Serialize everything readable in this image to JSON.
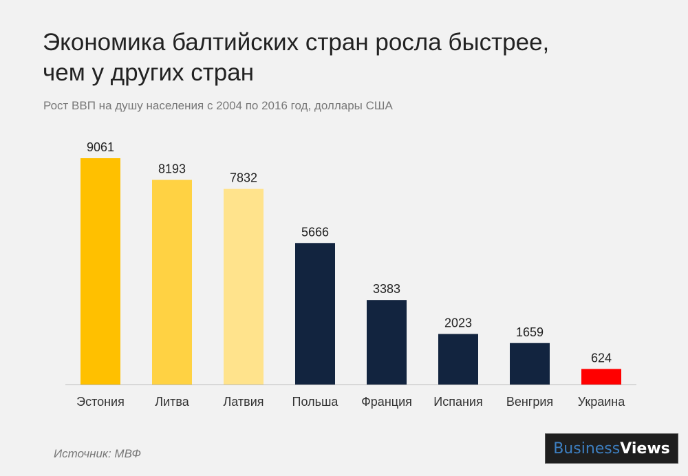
{
  "chart_data": {
    "type": "bar",
    "title": "Экономика балтийских стран росла быстрее, чем у других стран",
    "subtitle": "Рост ВВП на душу населения с 2004 по 2016 год, доллары США",
    "categories": [
      "Эстония",
      "Литва",
      "Латвия",
      "Польша",
      "Франция",
      "Испания",
      "Венгрия",
      "Украина"
    ],
    "values": [
      9061,
      8193,
      7832,
      5666,
      3383,
      2023,
      1659,
      624
    ],
    "colors": [
      "#ffc000",
      "#ffd243",
      "#ffe38c",
      "#12243f",
      "#12243f",
      "#12243f",
      "#12243f",
      "#ff0000"
    ],
    "ylim": [
      0,
      9061
    ],
    "grid": false,
    "data_labels": true
  },
  "source": "Источник: МВФ",
  "logo": {
    "part1": "Business",
    "part2": "Views"
  }
}
